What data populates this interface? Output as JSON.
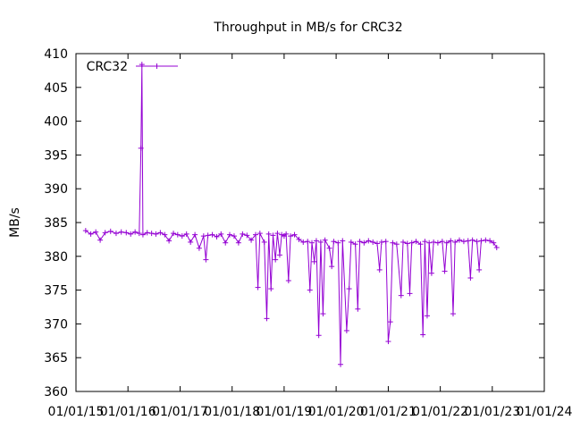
{
  "chart_data": {
    "type": "line",
    "title": "Throughput in MB/s for CRC32",
    "xlabel": "",
    "ylabel": "MB/s",
    "ylim": [
      360,
      410
    ],
    "xlim": [
      "01/01/15",
      "01/01/24"
    ],
    "yticks": [
      360,
      365,
      370,
      375,
      380,
      385,
      390,
      395,
      400,
      405,
      410
    ],
    "xticks": [
      "01/01/15",
      "01/01/16",
      "01/01/17",
      "01/01/18",
      "01/01/19",
      "01/01/20",
      "01/01/21",
      "01/01/22",
      "01/01/23",
      "01/01/24"
    ],
    "grid": false,
    "legend": "top-left",
    "color": "#9400d3",
    "series": [
      {
        "name": "CRC32",
        "points": [
          [
            "2015-03-10",
            383.8
          ],
          [
            "2015-04-15",
            383.3
          ],
          [
            "2015-05-20",
            383.6
          ],
          [
            "2015-06-20",
            382.4
          ],
          [
            "2015-07-25",
            383.5
          ],
          [
            "2015-09-01",
            383.7
          ],
          [
            "2015-10-10",
            383.4
          ],
          [
            "2015-11-15",
            383.6
          ],
          [
            "2015-12-20",
            383.5
          ],
          [
            "2016-01-20",
            383.3
          ],
          [
            "2016-02-20",
            383.6
          ],
          [
            "2016-03-20",
            383.4
          ],
          [
            "2016-04-01",
            396.0
          ],
          [
            "2016-04-08",
            408.4
          ],
          [
            "2016-04-15",
            383.2
          ],
          [
            "2016-05-15",
            383.5
          ],
          [
            "2016-06-15",
            383.4
          ],
          [
            "2016-07-15",
            383.3
          ],
          [
            "2016-08-15",
            383.5
          ],
          [
            "2016-09-15",
            383.2
          ],
          [
            "2016-10-15",
            382.3
          ],
          [
            "2016-11-15",
            383.4
          ],
          [
            "2016-12-15",
            383.2
          ],
          [
            "2017-01-15",
            383.0
          ],
          [
            "2017-02-15",
            383.3
          ],
          [
            "2017-03-15",
            382.1
          ],
          [
            "2017-04-15",
            383.2
          ],
          [
            "2017-05-15",
            381.2
          ],
          [
            "2017-06-15",
            383.0
          ],
          [
            "2017-07-01",
            379.5
          ],
          [
            "2017-07-15",
            383.1
          ],
          [
            "2017-08-15",
            383.2
          ],
          [
            "2017-09-15",
            382.9
          ],
          [
            "2017-10-15",
            383.3
          ],
          [
            "2017-11-15",
            382.0
          ],
          [
            "2017-12-15",
            383.2
          ],
          [
            "2018-01-15",
            383.0
          ],
          [
            "2018-02-15",
            382.0
          ],
          [
            "2018-03-15",
            383.3
          ],
          [
            "2018-04-15",
            383.1
          ],
          [
            "2018-05-15",
            382.4
          ],
          [
            "2018-06-15",
            383.2
          ],
          [
            "2018-07-01",
            375.4
          ],
          [
            "2018-07-15",
            383.4
          ],
          [
            "2018-08-15",
            382.1
          ],
          [
            "2018-09-01",
            370.8
          ],
          [
            "2018-09-15",
            383.3
          ],
          [
            "2018-10-01",
            375.2
          ],
          [
            "2018-10-15",
            383.1
          ],
          [
            "2018-11-01",
            379.5
          ],
          [
            "2018-11-15",
            383.4
          ],
          [
            "2018-12-01",
            380.2
          ],
          [
            "2018-12-15",
            383.2
          ],
          [
            "2019-01-01",
            383.0
          ],
          [
            "2019-01-15",
            383.3
          ],
          [
            "2019-02-01",
            376.4
          ],
          [
            "2019-02-15",
            383.0
          ],
          [
            "2019-03-15",
            383.2
          ],
          [
            "2019-04-15",
            382.5
          ],
          [
            "2019-05-15",
            382.1
          ],
          [
            "2019-06-15",
            382.2
          ],
          [
            "2019-07-01",
            375.0
          ],
          [
            "2019-07-15",
            382.0
          ],
          [
            "2019-08-01",
            379.2
          ],
          [
            "2019-08-15",
            382.3
          ],
          [
            "2019-09-01",
            368.3
          ],
          [
            "2019-09-15",
            382.1
          ],
          [
            "2019-10-01",
            371.5
          ],
          [
            "2019-10-15",
            382.4
          ],
          [
            "2019-11-15",
            381.2
          ],
          [
            "2019-12-01",
            378.5
          ],
          [
            "2019-12-15",
            382.2
          ],
          [
            "2020-01-15",
            382.0
          ],
          [
            "2020-02-01",
            364.0
          ],
          [
            "2020-02-15",
            382.3
          ],
          [
            "2020-03-15",
            369.0
          ],
          [
            "2020-04-01",
            375.2
          ],
          [
            "2020-04-15",
            382.1
          ],
          [
            "2020-05-15",
            381.8
          ],
          [
            "2020-06-01",
            372.2
          ],
          [
            "2020-06-15",
            382.2
          ],
          [
            "2020-07-15",
            382.0
          ],
          [
            "2020-08-15",
            382.3
          ],
          [
            "2020-09-15",
            382.1
          ],
          [
            "2020-10-15",
            381.9
          ],
          [
            "2020-11-01",
            378.0
          ],
          [
            "2020-11-15",
            382.1
          ],
          [
            "2020-12-15",
            382.2
          ],
          [
            "2021-01-01",
            367.4
          ],
          [
            "2021-01-15",
            370.3
          ],
          [
            "2021-02-01",
            382.0
          ],
          [
            "2021-03-01",
            381.8
          ],
          [
            "2021-04-01",
            374.2
          ],
          [
            "2021-04-15",
            382.1
          ],
          [
            "2021-05-15",
            381.9
          ],
          [
            "2021-06-01",
            374.5
          ],
          [
            "2021-06-15",
            382.0
          ],
          [
            "2021-07-15",
            382.2
          ],
          [
            "2021-08-15",
            381.8
          ],
          [
            "2021-09-01",
            368.4
          ],
          [
            "2021-09-15",
            382.2
          ],
          [
            "2021-10-01",
            371.2
          ],
          [
            "2021-10-15",
            382.0
          ],
          [
            "2021-11-01",
            377.5
          ],
          [
            "2021-11-15",
            382.1
          ],
          [
            "2021-12-15",
            382.0
          ],
          [
            "2022-01-15",
            382.2
          ],
          [
            "2022-02-01",
            377.8
          ],
          [
            "2022-02-15",
            382.0
          ],
          [
            "2022-03-15",
            382.3
          ],
          [
            "2022-04-01",
            371.5
          ],
          [
            "2022-04-15",
            382.1
          ],
          [
            "2022-05-15",
            382.4
          ],
          [
            "2022-06-15",
            382.2
          ],
          [
            "2022-07-15",
            382.3
          ],
          [
            "2022-08-01",
            376.8
          ],
          [
            "2022-08-15",
            382.4
          ],
          [
            "2022-09-15",
            382.2
          ],
          [
            "2022-10-01",
            378.0
          ],
          [
            "2022-10-15",
            382.3
          ],
          [
            "2022-11-15",
            382.4
          ],
          [
            "2022-12-15",
            382.3
          ],
          [
            "2023-01-10",
            382.0
          ],
          [
            "2023-02-01",
            381.3
          ]
        ]
      }
    ]
  }
}
